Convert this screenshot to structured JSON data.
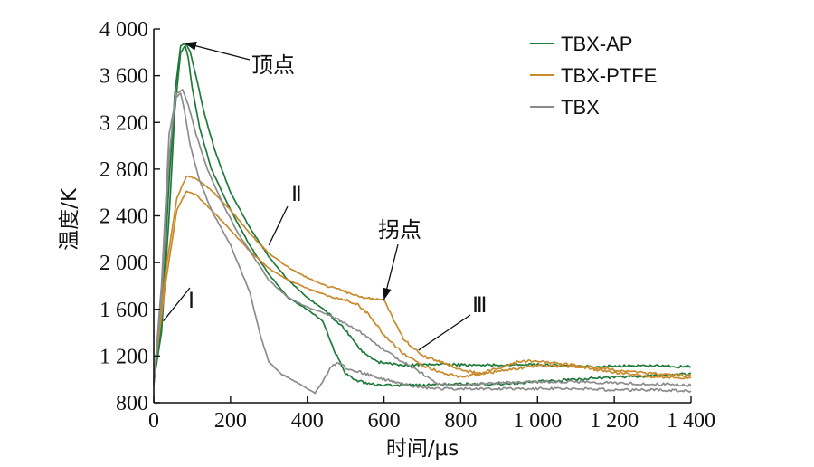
{
  "chart_data": {
    "type": "line",
    "xlabel": "时间/μs",
    "ylabel": "温度/K",
    "xlim": [
      0,
      1400
    ],
    "ylim": [
      800,
      4000
    ],
    "x_ticks": [
      0,
      200,
      400,
      600,
      800,
      1000,
      1200,
      1400
    ],
    "x_tick_labels": [
      "0",
      "200",
      "400",
      "600",
      "800",
      "1 000",
      "1 200",
      "1 400"
    ],
    "y_ticks": [
      800,
      1200,
      1600,
      2000,
      2400,
      2800,
      3200,
      3600,
      4000
    ],
    "y_tick_labels": [
      "800",
      "1 200",
      "1 600",
      "2 000",
      "2 400",
      "2 800",
      "3 200",
      "3 600",
      "4 000"
    ],
    "legend_position": "top-right",
    "colors": {
      "TBX-AP": "#1f7a3a",
      "TBX-PTFE": "#c98a2c",
      "TBX": "#8c8c8c"
    },
    "series": [
      {
        "name": "TBX-AP",
        "curves": [
          {
            "x": [
              0,
              20,
              40,
              55,
              70,
              80,
              90,
              100,
              120,
              150,
              200,
              250,
              300,
              350,
              400,
              440,
              470,
              500,
              520,
              560,
              600,
              700,
              800,
              900,
              1000,
              1100,
              1200,
              1300,
              1400
            ],
            "y": [
              950,
              1500,
              2700,
              3450,
              3850,
              3880,
              3750,
              3500,
              3150,
              2800,
              2450,
              2150,
              1900,
              1700,
              1600,
              1500,
              1250,
              1050,
              1000,
              960,
              950,
              950,
              960,
              960,
              980,
              1000,
              1020,
              1030,
              1050
            ]
          },
          {
            "x": [
              0,
              20,
              40,
              55,
              70,
              85,
              95,
              110,
              130,
              160,
              200,
              250,
              300,
              350,
              400,
              450,
              500,
              540,
              580,
              650,
              750,
              850,
              950,
              1050,
              1150,
              1250,
              1350,
              1400
            ],
            "y": [
              980,
              1400,
              2400,
              3300,
              3800,
              3870,
              3800,
              3600,
              3300,
              2950,
              2600,
              2300,
              2050,
              1850,
              1700,
              1580,
              1420,
              1250,
              1150,
              1120,
              1130,
              1120,
              1130,
              1120,
              1110,
              1120,
              1110,
              1110
            ]
          }
        ]
      },
      {
        "name": "TBX-PTFE",
        "curves": [
          {
            "x": [
              0,
              30,
              60,
              85,
              110,
              150,
              200,
              250,
              300,
              350,
              400,
              450,
              500,
              550,
              600,
              620,
              650,
              700,
              750,
              800,
              850,
              900,
              950,
              1000,
              1100,
              1200,
              1300,
              1400
            ],
            "y": [
              1000,
              1900,
              2550,
              2740,
              2720,
              2620,
              2450,
              2250,
              2080,
              1960,
              1870,
              1800,
              1750,
              1700,
              1680,
              1550,
              1350,
              1200,
              1150,
              1080,
              1050,
              1100,
              1150,
              1160,
              1120,
              1080,
              1050,
              1030
            ]
          },
          {
            "x": [
              0,
              30,
              60,
              85,
              110,
              150,
              200,
              250,
              300,
              350,
              400,
              450,
              500,
              530,
              560,
              600,
              650,
              700,
              750,
              800,
              900,
              1000,
              1100,
              1200,
              1300,
              1400
            ],
            "y": [
              1020,
              1800,
              2450,
              2610,
              2580,
              2450,
              2280,
              2100,
              1950,
              1850,
              1780,
              1720,
              1680,
              1640,
              1560,
              1380,
              1220,
              1120,
              1060,
              1020,
              1070,
              1120,
              1110,
              1060,
              1020,
              1010
            ]
          }
        ]
      },
      {
        "name": "TBX",
        "curves": [
          {
            "x": [
              0,
              20,
              40,
              55,
              70,
              80,
              95,
              120,
              150,
              200,
              250,
              280,
              300,
              330,
              360,
              400,
              420,
              440,
              460,
              480,
              500,
              550,
              600,
              650,
              700,
              750,
              800,
              900,
              1000,
              1100,
              1200,
              1300,
              1400
            ],
            "y": [
              950,
              1700,
              2900,
              3400,
              3450,
              3300,
              3000,
              2700,
              2450,
              2150,
              1750,
              1350,
              1150,
              1050,
              1000,
              920,
              880,
              980,
              1100,
              1150,
              1100,
              1050,
              1000,
              960,
              930,
              920,
              920,
              920,
              920,
              920,
              910,
              910,
              900
            ]
          },
          {
            "x": [
              0,
              20,
              40,
              60,
              75,
              90,
              110,
              140,
              180,
              220,
              260,
              300,
              350,
              400,
              450,
              500,
              550,
              600,
              650,
              700,
              740,
              800,
              900,
              1000,
              1100,
              1200,
              1300,
              1400
            ],
            "y": [
              970,
              1800,
              3100,
              3450,
              3480,
              3350,
              3100,
              2800,
              2500,
              2250,
              2050,
              1850,
              1700,
              1620,
              1560,
              1480,
              1380,
              1250,
              1150,
              1050,
              960,
              950,
              970,
              980,
              980,
              970,
              960,
              950
            ]
          }
        ]
      }
    ],
    "annotations": [
      {
        "text": "顶点",
        "x": 80,
        "y": 3880
      },
      {
        "text": "Ⅰ",
        "x": 25,
        "y": 1500
      },
      {
        "text": "Ⅱ",
        "x": 300,
        "y": 2150
      },
      {
        "text": "拐点",
        "x": 600,
        "y": 1680
      },
      {
        "text": "Ⅲ",
        "x": 690,
        "y": 1250
      }
    ]
  }
}
